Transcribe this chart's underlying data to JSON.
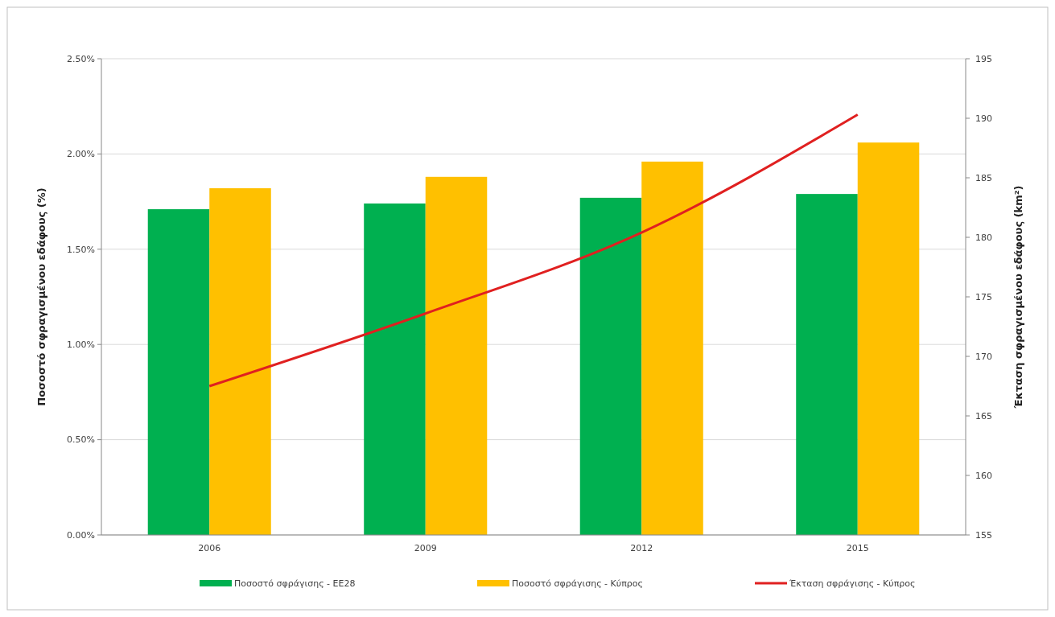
{
  "chart_data": {
    "type": "bar",
    "categories": [
      "2006",
      "2009",
      "2012",
      "2015"
    ],
    "ylabel": "Ποσοστό σφραγισμένου εδάφους  (%)",
    "y2label": "Έκταση σφραγισμένου εδάφους (km²)",
    "series": [
      {
        "name": "Ποσοστό σφράγισης - ΕΕ28",
        "color": "#00b050",
        "values": [
          1.71,
          1.74,
          1.77,
          1.79
        ]
      },
      {
        "name": "Ποσοστό σφράγισης - Κύπρος",
        "color": "#ffc000",
        "values": [
          1.82,
          1.88,
          1.96,
          2.06
        ]
      },
      {
        "name": "Έκταση σφράγισης - Κύπρος",
        "type": "line",
        "axis": "y2",
        "color": "#e02020",
        "values": [
          167.5,
          173.6,
          180.4,
          190.3
        ]
      }
    ],
    "ylim": [
      0,
      2.5
    ],
    "yticks": [
      {
        "value": 0,
        "label": "0.00%"
      },
      {
        "value": 0.5,
        "label": "0.50%"
      },
      {
        "value": 1,
        "label": "1.00%"
      },
      {
        "value": 1.5,
        "label": "1.50%"
      },
      {
        "value": 2,
        "label": "2.00%"
      },
      {
        "value": 2.5,
        "label": "2.50%"
      }
    ],
    "y2lim": [
      155,
      195
    ],
    "y2ticks": [
      155,
      160,
      165,
      170,
      175,
      180,
      185,
      190,
      195
    ],
    "grid": "y",
    "legend": "bottom"
  }
}
